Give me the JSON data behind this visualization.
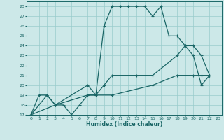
{
  "xlabel": "Humidex (Indice chaleur)",
  "xlim": [
    -0.5,
    23.5
  ],
  "ylim": [
    17,
    28.5
  ],
  "yticks": [
    17,
    18,
    19,
    20,
    21,
    22,
    23,
    24,
    25,
    26,
    27,
    28
  ],
  "xticks": [
    0,
    1,
    2,
    3,
    4,
    5,
    6,
    7,
    8,
    9,
    10,
    11,
    12,
    13,
    14,
    15,
    16,
    17,
    18,
    19,
    20,
    21,
    22,
    23
  ],
  "bg_color": "#cce8e8",
  "grid_color": "#99cccc",
  "line_color": "#1a6666",
  "line1_x": [
    0,
    1,
    2,
    3,
    4,
    5,
    6,
    7,
    8,
    9,
    10,
    11,
    12,
    13,
    14,
    15,
    16,
    17,
    18,
    19,
    20,
    21,
    22
  ],
  "line1_y": [
    17,
    19,
    19,
    18,
    18,
    17,
    18,
    19,
    19,
    26,
    28,
    28,
    28,
    28,
    28,
    27,
    28,
    25,
    25,
    24,
    23,
    20,
    21
  ],
  "line2_x": [
    0,
    2,
    3,
    7,
    8,
    9,
    10,
    13,
    15,
    18,
    19,
    20,
    21,
    22
  ],
  "line2_y": [
    17,
    19,
    18,
    20,
    19,
    20,
    21,
    21,
    21,
    23,
    24,
    24,
    23,
    21
  ],
  "line3_x": [
    0,
    3,
    7,
    10,
    15,
    18,
    20,
    21,
    22
  ],
  "line3_y": [
    17,
    18,
    19,
    19,
    20,
    21,
    21,
    21,
    21
  ]
}
